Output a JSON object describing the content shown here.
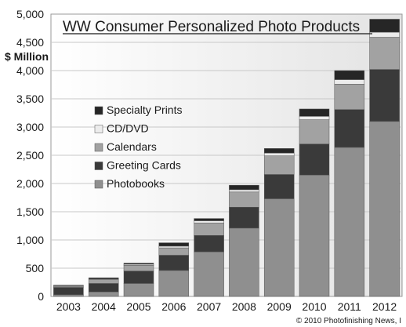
{
  "chart_data": {
    "type": "bar",
    "stacked": true,
    "title": "WW Consumer Personalized Photo Products",
    "ylabel": "$ Million",
    "xlabel": "",
    "ylim": [
      0,
      5000
    ],
    "yticks": [
      0,
      500,
      1000,
      1500,
      2000,
      2500,
      3000,
      3500,
      4000,
      4500,
      5000
    ],
    "ytick_labels": [
      "0",
      "500",
      "1,000",
      "1,500",
      "2,000",
      "2,500",
      "3,000",
      "3,500",
      "4,000",
      "4,500",
      "5,000"
    ],
    "grid": true,
    "legend_position": "left",
    "categories": [
      "2003",
      "2004",
      "2005",
      "2006",
      "2007",
      "2008",
      "2009",
      "2010",
      "2011",
      "2012"
    ],
    "series": [
      {
        "name": "Photobooks",
        "color": "#8f8f8f",
        "values": [
          30,
          80,
          230,
          460,
          790,
          1210,
          1730,
          2150,
          2640,
          3100
        ]
      },
      {
        "name": "Greeting Cards",
        "color": "#3a3a3a",
        "values": [
          130,
          150,
          220,
          270,
          290,
          370,
          430,
          550,
          670,
          920
        ]
      },
      {
        "name": "Calendars",
        "color": "#a2a2a2",
        "values": [
          20,
          70,
          100,
          130,
          220,
          270,
          330,
          430,
          450,
          570
        ]
      },
      {
        "name": "CD/DVD",
        "color": "#ececec",
        "values": [
          10,
          10,
          20,
          30,
          40,
          40,
          50,
          60,
          80,
          90
        ]
      },
      {
        "name": "Specialty Prints",
        "color": "#262626",
        "values": [
          10,
          20,
          20,
          60,
          40,
          80,
          80,
          130,
          160,
          230
        ]
      }
    ],
    "legend_order": [
      "Specialty Prints",
      "CD/DVD",
      "Calendars",
      "Greeting Cards",
      "Photobooks"
    ],
    "source": "© 2010 Photofinishing News, I"
  }
}
